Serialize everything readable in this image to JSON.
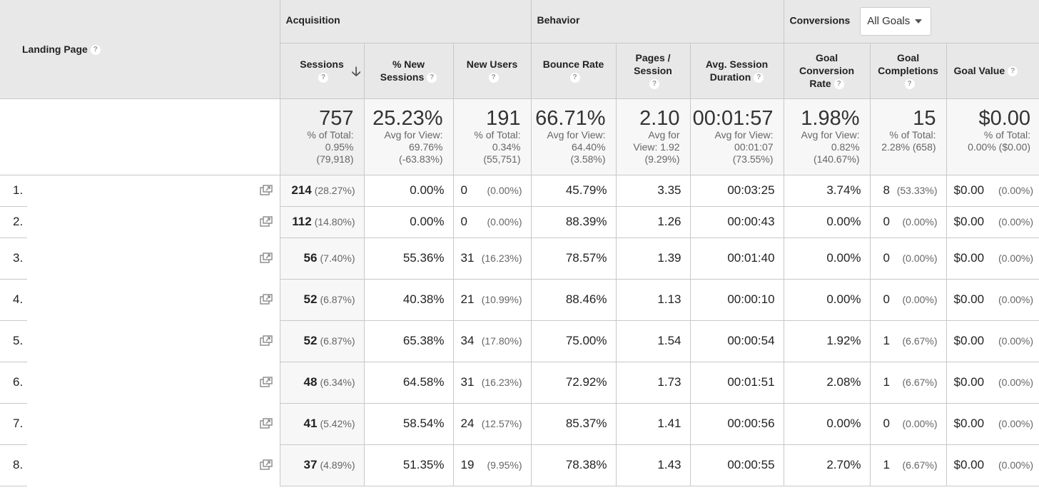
{
  "header": {
    "landing_page": "Landing Page",
    "group_acquisition": "Acquisition",
    "group_behavior": "Behavior",
    "group_conversions": "Conversions",
    "goals_select": "All Goals",
    "help_glyph": "?",
    "sort_glyph": "🡣",
    "columns": {
      "sessions": "Sessions",
      "new_sessions_1": "% New",
      "new_sessions_2": "Sessions",
      "new_users": "New Users",
      "bounce_rate": "Bounce Rate",
      "pages_session_1": "Pages /",
      "pages_session_2": "Session",
      "avg_duration_1": "Avg. Session",
      "avg_duration_2": "Duration",
      "goal_conv_1": "Goal",
      "goal_conv_2": "Conversion",
      "goal_conv_3": "Rate",
      "goal_comp_1": "Goal",
      "goal_comp_2": "Completions",
      "goal_value": "Goal Value"
    }
  },
  "totals": {
    "sessions": {
      "value": "757",
      "l1": "% of Total:",
      "l2": "0.95%",
      "l3": "(79,918)"
    },
    "new_sessions": {
      "value": "25.23%",
      "l1": "Avg for View:",
      "l2": "69.76%",
      "l3": "(-63.83%)"
    },
    "new_users": {
      "value": "191",
      "l1": "% of Total:",
      "l2": "0.34%",
      "l3": "(55,751)"
    },
    "bounce_rate": {
      "value": "66.71%",
      "l1": "Avg for View:",
      "l2": "64.40%",
      "l3": "(3.58%)"
    },
    "pages_session": {
      "value": "2.10",
      "l1": "Avg for",
      "l2": "View: 1.92",
      "l3": "(9.29%)"
    },
    "avg_duration": {
      "value": "00:01:57",
      "l1": "Avg for View:",
      "l2": "00:01:07",
      "l3": "(73.55%)"
    },
    "goal_conv": {
      "value": "1.98%",
      "l1": "Avg for View:",
      "l2": "0.82%",
      "l3": "(140.67%)"
    },
    "goal_comp": {
      "value": "15",
      "l1": "% of Total:",
      "l2": "2.28% (658)",
      "l3": ""
    },
    "goal_value": {
      "value": "$0.00",
      "l1": "% of Total:",
      "l2": "0.00% ($0.00)",
      "l3": ""
    }
  },
  "rows": [
    {
      "idx": "1.",
      "sessions": "214",
      "sessions_pct": "(28.27%)",
      "new_sessions": "0.00%",
      "new_users": "0",
      "new_users_pct": "(0.00%)",
      "bounce": "45.79%",
      "pages": "3.35",
      "duration": "00:03:25",
      "conv": "3.74%",
      "comp": "8",
      "comp_pct": "(53.33%)",
      "value": "$0.00",
      "value_pct": "(0.00%)"
    },
    {
      "idx": "2.",
      "sessions": "112",
      "sessions_pct": "(14.80%)",
      "new_sessions": "0.00%",
      "new_users": "0",
      "new_users_pct": "(0.00%)",
      "bounce": "88.39%",
      "pages": "1.26",
      "duration": "00:00:43",
      "conv": "0.00%",
      "comp": "0",
      "comp_pct": "(0.00%)",
      "value": "$0.00",
      "value_pct": "(0.00%)"
    },
    {
      "idx": "3.",
      "sessions": "56",
      "sessions_pct": "(7.40%)",
      "new_sessions": "55.36%",
      "new_users": "31",
      "new_users_pct": "(16.23%)",
      "bounce": "78.57%",
      "pages": "1.39",
      "duration": "00:01:40",
      "conv": "0.00%",
      "comp": "0",
      "comp_pct": "(0.00%)",
      "value": "$0.00",
      "value_pct": "(0.00%)"
    },
    {
      "idx": "4.",
      "sessions": "52",
      "sessions_pct": "(6.87%)",
      "new_sessions": "40.38%",
      "new_users": "21",
      "new_users_pct": "(10.99%)",
      "bounce": "88.46%",
      "pages": "1.13",
      "duration": "00:00:10",
      "conv": "0.00%",
      "comp": "0",
      "comp_pct": "(0.00%)",
      "value": "$0.00",
      "value_pct": "(0.00%)"
    },
    {
      "idx": "5.",
      "sessions": "52",
      "sessions_pct": "(6.87%)",
      "new_sessions": "65.38%",
      "new_users": "34",
      "new_users_pct": "(17.80%)",
      "bounce": "75.00%",
      "pages": "1.54",
      "duration": "00:00:54",
      "conv": "1.92%",
      "comp": "1",
      "comp_pct": "(6.67%)",
      "value": "$0.00",
      "value_pct": "(0.00%)"
    },
    {
      "idx": "6.",
      "sessions": "48",
      "sessions_pct": "(6.34%)",
      "new_sessions": "64.58%",
      "new_users": "31",
      "new_users_pct": "(16.23%)",
      "bounce": "72.92%",
      "pages": "1.73",
      "duration": "00:01:51",
      "conv": "2.08%",
      "comp": "1",
      "comp_pct": "(6.67%)",
      "value": "$0.00",
      "value_pct": "(0.00%)"
    },
    {
      "idx": "7.",
      "sessions": "41",
      "sessions_pct": "(5.42%)",
      "new_sessions": "58.54%",
      "new_users": "24",
      "new_users_pct": "(12.57%)",
      "bounce": "85.37%",
      "pages": "1.41",
      "duration": "00:00:56",
      "conv": "0.00%",
      "comp": "0",
      "comp_pct": "(0.00%)",
      "value": "$0.00",
      "value_pct": "(0.00%)"
    },
    {
      "idx": "8.",
      "sessions": "37",
      "sessions_pct": "(4.89%)",
      "new_sessions": "51.35%",
      "new_users": "19",
      "new_users_pct": "(9.95%)",
      "bounce": "78.38%",
      "pages": "1.43",
      "duration": "00:00:55",
      "conv": "2.70%",
      "comp": "1",
      "comp_pct": "(6.67%)",
      "value": "$0.00",
      "value_pct": "(0.00%)"
    }
  ]
}
